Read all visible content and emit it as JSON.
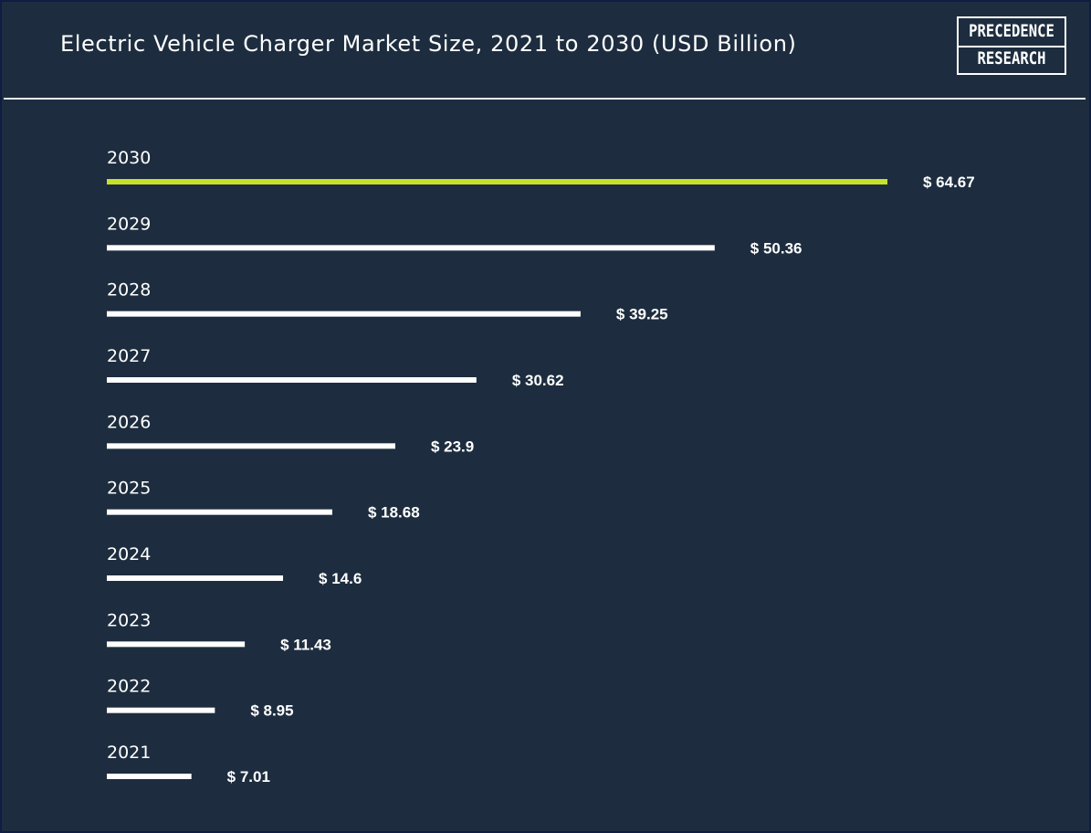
{
  "header": {
    "title": "Electric Vehicle Charger Market Size, 2021 to 2030 (USD Billion)",
    "logo_line1": "PRECEDENCE",
    "logo_line2": "RESEARCH"
  },
  "colors": {
    "background": "#1d2d3f",
    "bar": "#ffffff",
    "highlight_bar": "#c6e22a",
    "text": "#ffffff"
  },
  "chart_data": {
    "type": "bar",
    "orientation": "horizontal",
    "title": "Electric Vehicle Charger Market Size, 2021 to 2030 (USD Billion)",
    "categories": [
      "2030",
      "2029",
      "2028",
      "2027",
      "2026",
      "2025",
      "2024",
      "2023",
      "2022",
      "2021"
    ],
    "values": [
      64.67,
      50.36,
      39.25,
      30.62,
      23.9,
      18.68,
      14.6,
      11.43,
      8.95,
      7.01
    ],
    "value_labels": [
      "$ 64.67",
      "$ 50.36",
      "$ 39.25",
      "$ 30.62",
      "$ 23.9",
      "$ 18.68",
      "$ 14.6",
      "$ 11.43",
      "$ 8.95",
      "$ 7.01"
    ],
    "highlight_category": "2030",
    "xlabel": "",
    "ylabel": "",
    "grid": false,
    "legend": "none"
  }
}
